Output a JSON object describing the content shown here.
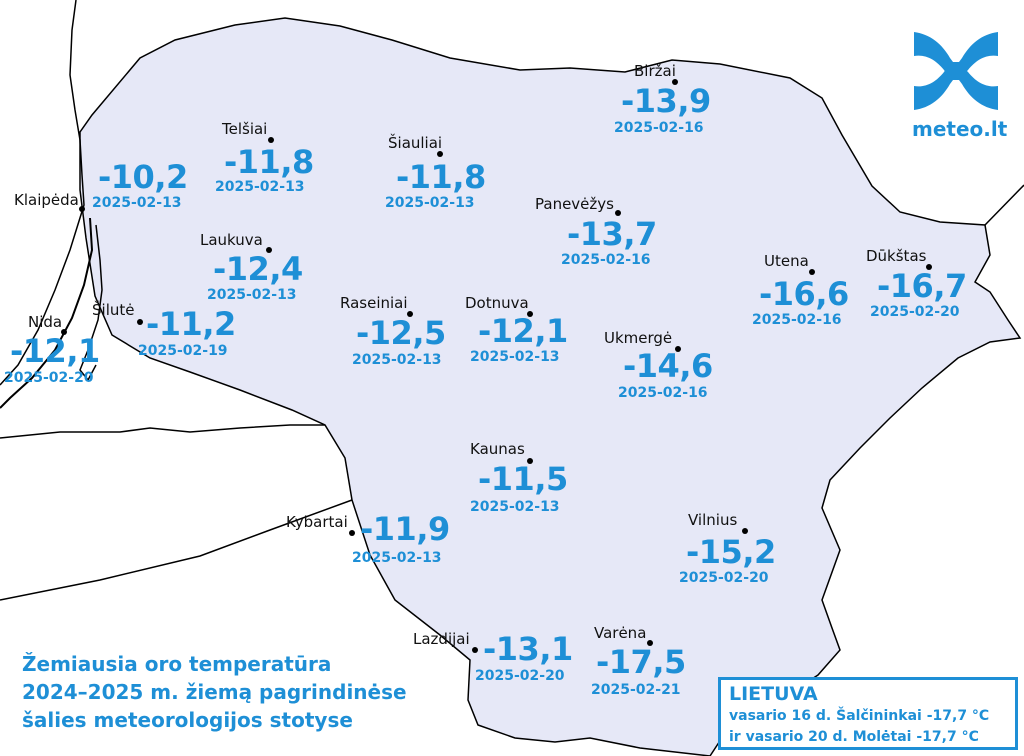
{
  "stations": [
    {
      "name": "Klaipėda",
      "temp": "-10,2",
      "date": "2025-02-13"
    },
    {
      "name": "Telšiai",
      "temp": "-11,8",
      "date": "2025-02-13"
    },
    {
      "name": "Šiauliai",
      "temp": "-11,8",
      "date": "2025-02-13"
    },
    {
      "name": "Biržai",
      "temp": "-13,9",
      "date": "2025-02-16"
    },
    {
      "name": "Panevėžys",
      "temp": "-13,7",
      "date": "2025-02-16"
    },
    {
      "name": "Laukuva",
      "temp": "-12,4",
      "date": "2025-02-13"
    },
    {
      "name": "Utena",
      "temp": "-16,6",
      "date": "2025-02-16"
    },
    {
      "name": "Dūkštas",
      "temp": "-16,7",
      "date": "2025-02-20"
    },
    {
      "name": "Šilutė",
      "temp": "-11,2",
      "date": "2025-02-19"
    },
    {
      "name": "Nida",
      "temp": "-12,1",
      "date": "2025-02-20"
    },
    {
      "name": "Raseiniai",
      "temp": "-12,5",
      "date": "2025-02-13"
    },
    {
      "name": "Dotnuva",
      "temp": "-12,1",
      "date": "2025-02-13"
    },
    {
      "name": "Ukmergė",
      "temp": "-14,6",
      "date": "2025-02-16"
    },
    {
      "name": "Kaunas",
      "temp": "-11,5",
      "date": "2025-02-13"
    },
    {
      "name": "Kybartai",
      "temp": "-11,9",
      "date": "2025-02-13"
    },
    {
      "name": "Vilnius",
      "temp": "-15,2",
      "date": "2025-02-20"
    },
    {
      "name": "Lazdijai",
      "temp": "-13,1",
      "date": "2025-02-20"
    },
    {
      "name": "Varėna",
      "temp": "-17,5",
      "date": "2025-02-21"
    }
  ],
  "caption": {
    "line1": "Žemiausia oro temperatūra",
    "line2": "2024–2025 m. žiemą pagrindinėse",
    "line3": "šalies meteorologijos stotyse"
  },
  "record_box": {
    "title": "LIETUVA",
    "line1": "vasario 16 d. Šalčininkai -17,7 °C",
    "line2": "ir vasario 20 d. Molėtai -17,7 °C"
  },
  "logo": {
    "text": "meteo.lt",
    "icon": "meteo-waves-logo"
  },
  "colors": {
    "accent": "#1e8fd6",
    "land": "#e6e8f7",
    "border": "#000000",
    "label": "#111111"
  }
}
